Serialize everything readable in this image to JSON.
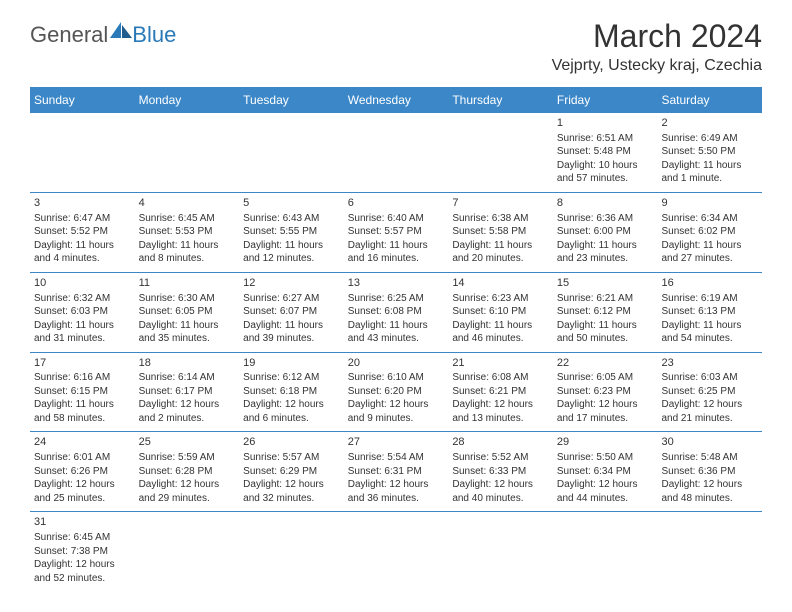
{
  "logo": {
    "text1": "General",
    "text2": "Blue"
  },
  "title": "March 2024",
  "location": "Vejprty, Ustecky kraj, Czechia",
  "colors": {
    "header_bg": "#3b87c8",
    "header_text": "#ffffff",
    "border": "#3b87c8",
    "logo_gray": "#555555",
    "logo_blue": "#2a7ab9",
    "text": "#333333",
    "background": "#ffffff"
  },
  "day_names": [
    "Sunday",
    "Monday",
    "Tuesday",
    "Wednesday",
    "Thursday",
    "Friday",
    "Saturday"
  ],
  "weeks": [
    [
      null,
      null,
      null,
      null,
      null,
      {
        "n": "1",
        "sunrise": "Sunrise: 6:51 AM",
        "sunset": "Sunset: 5:48 PM",
        "daylight": "Daylight: 10 hours and 57 minutes."
      },
      {
        "n": "2",
        "sunrise": "Sunrise: 6:49 AM",
        "sunset": "Sunset: 5:50 PM",
        "daylight": "Daylight: 11 hours and 1 minute."
      }
    ],
    [
      {
        "n": "3",
        "sunrise": "Sunrise: 6:47 AM",
        "sunset": "Sunset: 5:52 PM",
        "daylight": "Daylight: 11 hours and 4 minutes."
      },
      {
        "n": "4",
        "sunrise": "Sunrise: 6:45 AM",
        "sunset": "Sunset: 5:53 PM",
        "daylight": "Daylight: 11 hours and 8 minutes."
      },
      {
        "n": "5",
        "sunrise": "Sunrise: 6:43 AM",
        "sunset": "Sunset: 5:55 PM",
        "daylight": "Daylight: 11 hours and 12 minutes."
      },
      {
        "n": "6",
        "sunrise": "Sunrise: 6:40 AM",
        "sunset": "Sunset: 5:57 PM",
        "daylight": "Daylight: 11 hours and 16 minutes."
      },
      {
        "n": "7",
        "sunrise": "Sunrise: 6:38 AM",
        "sunset": "Sunset: 5:58 PM",
        "daylight": "Daylight: 11 hours and 20 minutes."
      },
      {
        "n": "8",
        "sunrise": "Sunrise: 6:36 AM",
        "sunset": "Sunset: 6:00 PM",
        "daylight": "Daylight: 11 hours and 23 minutes."
      },
      {
        "n": "9",
        "sunrise": "Sunrise: 6:34 AM",
        "sunset": "Sunset: 6:02 PM",
        "daylight": "Daylight: 11 hours and 27 minutes."
      }
    ],
    [
      {
        "n": "10",
        "sunrise": "Sunrise: 6:32 AM",
        "sunset": "Sunset: 6:03 PM",
        "daylight": "Daylight: 11 hours and 31 minutes."
      },
      {
        "n": "11",
        "sunrise": "Sunrise: 6:30 AM",
        "sunset": "Sunset: 6:05 PM",
        "daylight": "Daylight: 11 hours and 35 minutes."
      },
      {
        "n": "12",
        "sunrise": "Sunrise: 6:27 AM",
        "sunset": "Sunset: 6:07 PM",
        "daylight": "Daylight: 11 hours and 39 minutes."
      },
      {
        "n": "13",
        "sunrise": "Sunrise: 6:25 AM",
        "sunset": "Sunset: 6:08 PM",
        "daylight": "Daylight: 11 hours and 43 minutes."
      },
      {
        "n": "14",
        "sunrise": "Sunrise: 6:23 AM",
        "sunset": "Sunset: 6:10 PM",
        "daylight": "Daylight: 11 hours and 46 minutes."
      },
      {
        "n": "15",
        "sunrise": "Sunrise: 6:21 AM",
        "sunset": "Sunset: 6:12 PM",
        "daylight": "Daylight: 11 hours and 50 minutes."
      },
      {
        "n": "16",
        "sunrise": "Sunrise: 6:19 AM",
        "sunset": "Sunset: 6:13 PM",
        "daylight": "Daylight: 11 hours and 54 minutes."
      }
    ],
    [
      {
        "n": "17",
        "sunrise": "Sunrise: 6:16 AM",
        "sunset": "Sunset: 6:15 PM",
        "daylight": "Daylight: 11 hours and 58 minutes."
      },
      {
        "n": "18",
        "sunrise": "Sunrise: 6:14 AM",
        "sunset": "Sunset: 6:17 PM",
        "daylight": "Daylight: 12 hours and 2 minutes."
      },
      {
        "n": "19",
        "sunrise": "Sunrise: 6:12 AM",
        "sunset": "Sunset: 6:18 PM",
        "daylight": "Daylight: 12 hours and 6 minutes."
      },
      {
        "n": "20",
        "sunrise": "Sunrise: 6:10 AM",
        "sunset": "Sunset: 6:20 PM",
        "daylight": "Daylight: 12 hours and 9 minutes."
      },
      {
        "n": "21",
        "sunrise": "Sunrise: 6:08 AM",
        "sunset": "Sunset: 6:21 PM",
        "daylight": "Daylight: 12 hours and 13 minutes."
      },
      {
        "n": "22",
        "sunrise": "Sunrise: 6:05 AM",
        "sunset": "Sunset: 6:23 PM",
        "daylight": "Daylight: 12 hours and 17 minutes."
      },
      {
        "n": "23",
        "sunrise": "Sunrise: 6:03 AM",
        "sunset": "Sunset: 6:25 PM",
        "daylight": "Daylight: 12 hours and 21 minutes."
      }
    ],
    [
      {
        "n": "24",
        "sunrise": "Sunrise: 6:01 AM",
        "sunset": "Sunset: 6:26 PM",
        "daylight": "Daylight: 12 hours and 25 minutes."
      },
      {
        "n": "25",
        "sunrise": "Sunrise: 5:59 AM",
        "sunset": "Sunset: 6:28 PM",
        "daylight": "Daylight: 12 hours and 29 minutes."
      },
      {
        "n": "26",
        "sunrise": "Sunrise: 5:57 AM",
        "sunset": "Sunset: 6:29 PM",
        "daylight": "Daylight: 12 hours and 32 minutes."
      },
      {
        "n": "27",
        "sunrise": "Sunrise: 5:54 AM",
        "sunset": "Sunset: 6:31 PM",
        "daylight": "Daylight: 12 hours and 36 minutes."
      },
      {
        "n": "28",
        "sunrise": "Sunrise: 5:52 AM",
        "sunset": "Sunset: 6:33 PM",
        "daylight": "Daylight: 12 hours and 40 minutes."
      },
      {
        "n": "29",
        "sunrise": "Sunrise: 5:50 AM",
        "sunset": "Sunset: 6:34 PM",
        "daylight": "Daylight: 12 hours and 44 minutes."
      },
      {
        "n": "30",
        "sunrise": "Sunrise: 5:48 AM",
        "sunset": "Sunset: 6:36 PM",
        "daylight": "Daylight: 12 hours and 48 minutes."
      }
    ],
    [
      {
        "n": "31",
        "sunrise": "Sunrise: 6:45 AM",
        "sunset": "Sunset: 7:38 PM",
        "daylight": "Daylight: 12 hours and 52 minutes."
      },
      null,
      null,
      null,
      null,
      null,
      null
    ]
  ]
}
